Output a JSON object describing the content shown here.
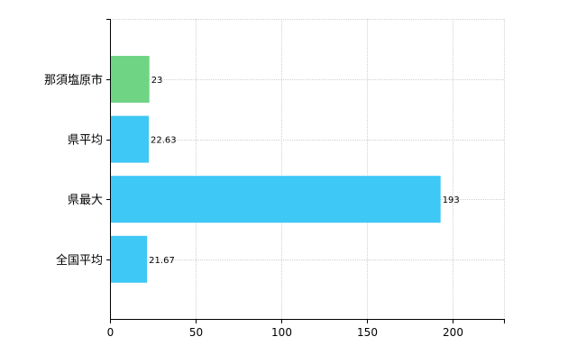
{
  "chart_data": {
    "type": "bar",
    "orientation": "horizontal",
    "categories": [
      "那須塩原市",
      "県平均",
      "県最大",
      "全国平均"
    ],
    "values": [
      23,
      22.63,
      193,
      21.67
    ],
    "value_labels": [
      "23",
      "22.63",
      "193",
      "21.67"
    ],
    "bar_colors": [
      "#70d485",
      "#3ec8f5",
      "#3ec8f5",
      "#3ec8f5"
    ],
    "xlim": [
      0,
      230
    ],
    "xticks": [
      0,
      50,
      100,
      150,
      200
    ],
    "xtick_labels": [
      "0",
      "50",
      "100",
      "150",
      "200"
    ],
    "title": "",
    "xlabel": "",
    "ylabel": "",
    "grid": true,
    "legend": "none"
  },
  "colors": {
    "grid": "#d0d0d0",
    "axis": "#000000",
    "text": "#000000"
  }
}
